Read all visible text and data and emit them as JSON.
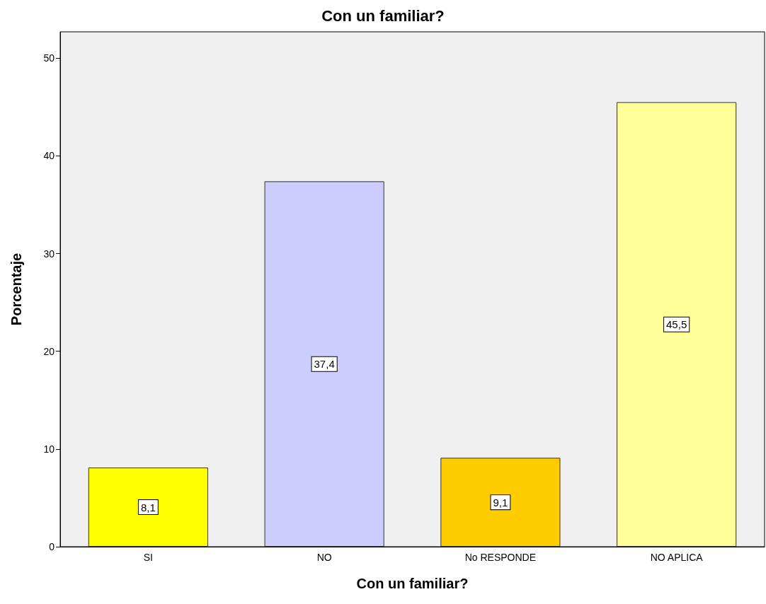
{
  "chart_data": {
    "type": "bar",
    "title": "Con un familiar?",
    "xlabel": "Con un familiar?",
    "ylabel": "Porcentaje",
    "categories": [
      "SI",
      "NO",
      "No RESPONDE",
      "NO APLICA"
    ],
    "values": [
      8.1,
      37.4,
      9.1,
      45.5
    ],
    "colors": [
      "#ffff00",
      "#ccccff",
      "#ffcc00",
      "#ffff99"
    ],
    "value_labels": [
      "8,1",
      "37,4",
      "9,1",
      "45,5"
    ],
    "ylim": [
      0,
      52.7
    ],
    "yticks": [
      0,
      10,
      20,
      30,
      40,
      50
    ],
    "grid": false
  }
}
